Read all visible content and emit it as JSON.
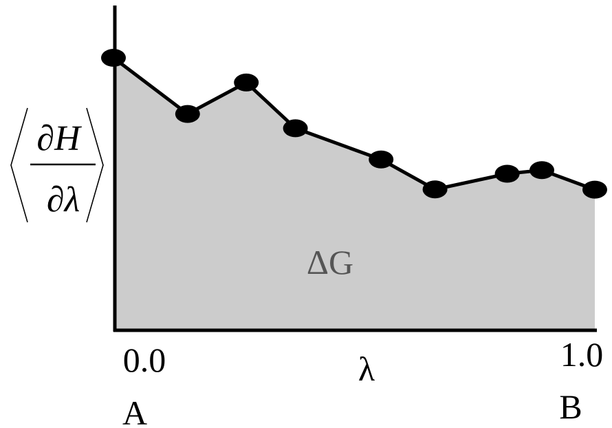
{
  "chart_data": {
    "type": "area",
    "title": "",
    "xlabel": "λ",
    "ylabel": "⟨∂H/∂λ⟩",
    "ylabel_parts": {
      "num": "∂H",
      "den": "∂λ"
    },
    "area_label": "ΔG",
    "xlim": [
      0.0,
      1.0
    ],
    "ylim": [
      0,
      1
    ],
    "ticks": [
      {
        "x": 0.0,
        "label": "0.0",
        "state": "A"
      },
      {
        "x": 1.0,
        "label": "1.0",
        "state": "B"
      }
    ],
    "x": [
      0.0,
      0.154,
      0.276,
      0.378,
      0.556,
      0.668,
      0.818,
      0.89,
      1.0
    ],
    "y": [
      0.839,
      0.666,
      0.763,
      0.622,
      0.526,
      0.434,
      0.482,
      0.493,
      0.433
    ],
    "grid": false,
    "legend": "none",
    "colors": {
      "fill": "#cccccc",
      "line": "#000000",
      "marker": "#000000",
      "area_label": "#555555"
    }
  }
}
